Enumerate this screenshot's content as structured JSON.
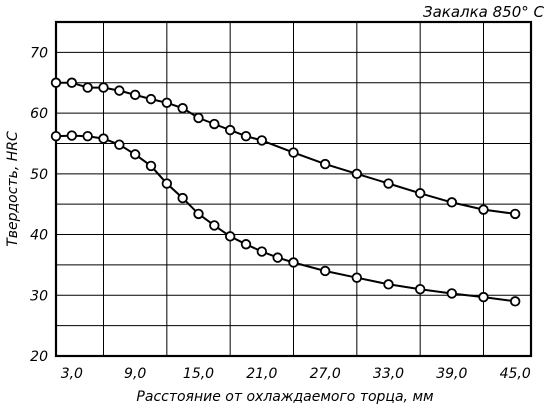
{
  "chart_data": {
    "type": "line",
    "title": "",
    "annotation": "Закалка 850° С",
    "xlabel": "Расстояние от охлаждаемого торца, мм",
    "ylabel": "Твердость, HRC",
    "xlim": [
      1.5,
      46.5
    ],
    "ylim": [
      20,
      75
    ],
    "x_gridlines": [
      6,
      12,
      18,
      24,
      30,
      36,
      42
    ],
    "y_gridlines": [
      25,
      30,
      35,
      40,
      45,
      50,
      55,
      60,
      65,
      70
    ],
    "xticks": [
      3,
      9,
      15,
      21,
      27,
      33,
      39,
      45
    ],
    "xtick_labels": [
      "3,0",
      "9,0",
      "15,0",
      "21,0",
      "27,0",
      "33,0",
      "39,0",
      "45,0"
    ],
    "yticks": [
      30,
      40,
      50,
      60,
      70
    ],
    "ytick_labels": [
      "30",
      "40",
      "50",
      "60",
      "70"
    ],
    "grid": true,
    "series": [
      {
        "x": [
          1.5,
          3,
          4.5,
          6,
          7.5,
          9,
          10.5,
          12,
          13.5,
          15,
          16.5,
          18,
          19.5,
          21,
          24,
          27,
          30,
          33,
          36,
          39,
          42,
          45
        ],
        "y": [
          65,
          65,
          64.2,
          64.2,
          63.7,
          63,
          62.3,
          61.7,
          60.8,
          59.2,
          58.2,
          57.2,
          56.2,
          55.5,
          53.5,
          51.6,
          50,
          48.4,
          46.8,
          45.3,
          44.1,
          43.4
        ]
      },
      {
        "x": [
          1.5,
          3,
          4.5,
          6,
          7.5,
          9,
          10.5,
          12,
          13.5,
          15,
          16.5,
          18,
          19.5,
          21,
          22.5,
          24,
          27,
          30,
          33,
          36,
          39,
          42,
          45
        ],
        "y": [
          56.2,
          56.3,
          56.2,
          55.8,
          54.8,
          53.2,
          51.3,
          48.4,
          46,
          43.4,
          41.5,
          39.7,
          38.4,
          37.2,
          36.2,
          35.4,
          34,
          32.9,
          31.8,
          31,
          30.3,
          29.7,
          29
        ]
      }
    ]
  }
}
